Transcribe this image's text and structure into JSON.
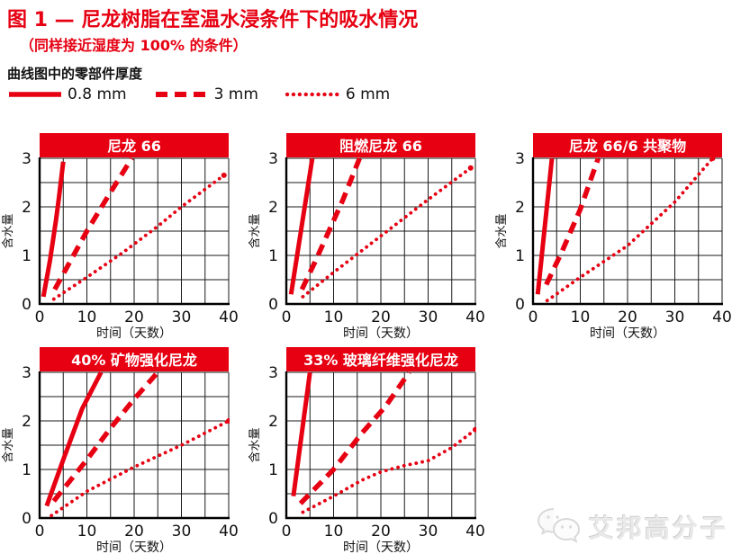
{
  "header": {
    "title": "图 1 — 尼龙树脂在室温水浸条件下的吸水情况",
    "subtitle": "（同样接近湿度为 100% 的条件）",
    "legend_title": "曲线图中的零部件厚度",
    "legend": [
      {
        "label": "0.8 mm",
        "style": "solid"
      },
      {
        "label": "3 mm",
        "style": "dashed"
      },
      {
        "label": "6 mm",
        "style": "dotted"
      }
    ]
  },
  "colors": {
    "accent": "#e60012",
    "banner_fill": "#e60012",
    "banner_text": "#ffffff",
    "grid": "#1a1a1a",
    "axis": "#000000",
    "text": "#111111",
    "watermark": "#e9e9e9"
  },
  "watermark": {
    "icon": "wechat-icon",
    "text": "艾邦高分子"
  },
  "chart_data": [
    {
      "type": "line",
      "title": "尼龙 66",
      "xlabel": "时间（天数）",
      "ylabel": "含水量",
      "xlim": [
        0,
        40
      ],
      "ylim": [
        0,
        3
      ],
      "xticks": [
        0,
        10,
        20,
        30,
        40
      ],
      "yticks": [
        0,
        1,
        2,
        3
      ],
      "x_minor_step": 5,
      "y_minor_step": 0.5,
      "grid": true,
      "series": [
        {
          "name": "0.8 mm",
          "style": "solid",
          "points": [
            [
              0.8,
              0.15
            ],
            [
              2.2,
              0.9
            ],
            [
              3.5,
              1.75
            ],
            [
              4.1,
              2.2
            ],
            [
              5,
              2.93
            ]
          ]
        },
        {
          "name": "3 mm",
          "style": "dashed",
          "points": [
            [
              3.2,
              0.3
            ],
            [
              10,
              1.5
            ],
            [
              15,
              2.3
            ],
            [
              19.5,
              3.0
            ]
          ]
        },
        {
          "name": "6 mm",
          "style": "dotted",
          "points": [
            [
              3,
              0.1
            ],
            [
              10,
              0.55
            ],
            [
              17.5,
              1.05
            ],
            [
              25,
              1.6
            ],
            [
              30,
              2.0
            ],
            [
              39,
              2.65
            ]
          ]
        }
      ]
    },
    {
      "type": "line",
      "title": "阻燃尼龙 66",
      "xlabel": "时间（天数）",
      "ylabel": "含水量",
      "xlim": [
        0,
        40
      ],
      "ylim": [
        0,
        3
      ],
      "xticks": [
        0,
        10,
        20,
        30,
        40
      ],
      "yticks": [
        0,
        1,
        2,
        3
      ],
      "x_minor_step": 5,
      "y_minor_step": 0.5,
      "grid": true,
      "series": [
        {
          "name": "0.8 mm",
          "style": "solid",
          "points": [
            [
              1,
              0.2
            ],
            [
              5.5,
              3.0
            ]
          ]
        },
        {
          "name": "3 mm",
          "style": "dashed",
          "points": [
            [
              3.3,
              0.3
            ],
            [
              6,
              0.85
            ],
            [
              9,
              1.5
            ],
            [
              12,
              2.15
            ],
            [
              15.5,
              3.0
            ]
          ]
        },
        {
          "name": "6 mm",
          "style": "dotted",
          "points": [
            [
              3.5,
              0.15
            ],
            [
              10,
              0.65
            ],
            [
              20,
              1.4
            ],
            [
              30,
              2.15
            ],
            [
              39,
              2.8
            ]
          ]
        }
      ]
    },
    {
      "type": "line",
      "title": "尼龙 66/6 共聚物",
      "xlabel": "时间（天数）",
      "ylabel": "含水量",
      "xlim": [
        0,
        40
      ],
      "ylim": [
        0,
        3
      ],
      "xticks": [
        0,
        10,
        20,
        30,
        40
      ],
      "yticks": [
        0,
        1,
        2,
        3
      ],
      "x_minor_step": 5,
      "y_minor_step": 0.5,
      "grid": true,
      "series": [
        {
          "name": "0.8 mm",
          "style": "solid",
          "points": [
            [
              1,
              0.2
            ],
            [
              4,
              3.0
            ]
          ]
        },
        {
          "name": "3 mm",
          "style": "dashed",
          "points": [
            [
              2.8,
              0.4
            ],
            [
              6,
              1.05
            ],
            [
              10,
              1.95
            ],
            [
              13.8,
              3.0
            ]
          ]
        },
        {
          "name": "6 mm",
          "style": "dotted",
          "points": [
            [
              3,
              0.07
            ],
            [
              10,
              0.55
            ],
            [
              20,
              1.2
            ],
            [
              30,
              2.1
            ],
            [
              38,
              3.0
            ]
          ]
        }
      ]
    },
    {
      "type": "line",
      "title": "40% 矿物强化尼龙",
      "xlabel": "时间（天数）",
      "ylabel": "含水量",
      "xlim": [
        0,
        40
      ],
      "ylim": [
        0,
        3
      ],
      "xticks": [
        0,
        10,
        20,
        30,
        40
      ],
      "yticks": [
        0,
        1,
        2,
        3
      ],
      "x_minor_step": 5,
      "y_minor_step": 0.5,
      "grid": true,
      "series": [
        {
          "name": "0.8 mm",
          "style": "solid",
          "points": [
            [
              1.5,
              0.25
            ],
            [
              5,
              1.2
            ],
            [
              9,
              2.25
            ],
            [
              13,
              3.0
            ]
          ]
        },
        {
          "name": "3 mm",
          "style": "dashed",
          "points": [
            [
              3,
              0.35
            ],
            [
              10,
              1.2
            ],
            [
              15,
              1.85
            ],
            [
              20,
              2.45
            ],
            [
              25,
              3.0
            ]
          ]
        },
        {
          "name": "6 mm",
          "style": "dotted",
          "points": [
            [
              2.5,
              0.05
            ],
            [
              10,
              0.55
            ],
            [
              20,
              1.05
            ],
            [
              30,
              1.5
            ],
            [
              40,
              2.0
            ]
          ]
        }
      ]
    },
    {
      "type": "line",
      "title": "33% 玻璃纤维强化尼龙",
      "xlabel": "时间（天数）",
      "ylabel": "含水量",
      "xlim": [
        0,
        40
      ],
      "ylim": [
        0,
        3
      ],
      "xticks": [
        0,
        10,
        20,
        30,
        40
      ],
      "yticks": [
        0,
        1,
        2,
        3
      ],
      "x_minor_step": 5,
      "y_minor_step": 0.5,
      "grid": true,
      "series": [
        {
          "name": "0.8 mm",
          "style": "solid",
          "points": [
            [
              1.5,
              0.45
            ],
            [
              5,
              3.0
            ]
          ]
        },
        {
          "name": "3 mm",
          "style": "dashed",
          "points": [
            [
              3,
              0.3
            ],
            [
              10,
              1.0
            ],
            [
              16,
              1.75
            ],
            [
              21,
              2.3
            ],
            [
              26,
              3.0
            ]
          ]
        },
        {
          "name": "6 mm",
          "style": "dotted",
          "points": [
            [
              3.5,
              0.12
            ],
            [
              10,
              0.45
            ],
            [
              16,
              0.78
            ],
            [
              20,
              0.95
            ],
            [
              25,
              1.08
            ],
            [
              30,
              1.18
            ],
            [
              35,
              1.45
            ],
            [
              40,
              1.82
            ]
          ]
        }
      ]
    }
  ]
}
